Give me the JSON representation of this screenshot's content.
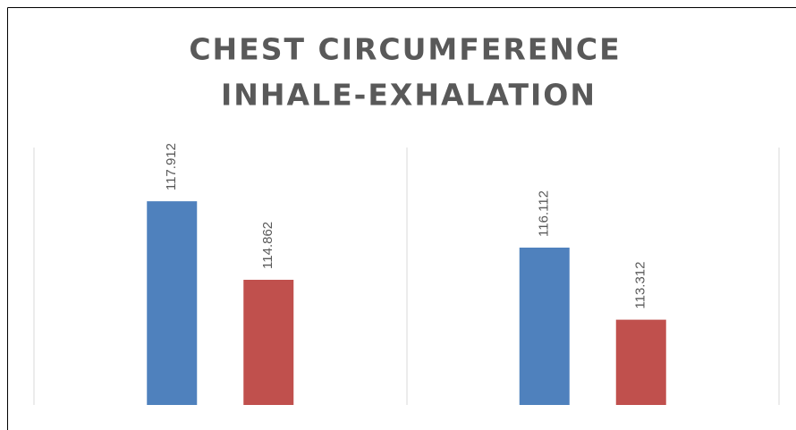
{
  "chart_data": {
    "type": "bar",
    "title": [
      "CHEST CIRCUMFERENCE",
      "INHALE-EXHALATION"
    ],
    "categories": [
      null,
      null
    ],
    "series": [
      {
        "color": "#4f81bd",
        "values": [
          117.912,
          116.112
        ]
      },
      {
        "color": "#c0504d",
        "values": [
          114.862,
          113.312
        ]
      }
    ],
    "ylim": [
      110,
      120
    ]
  }
}
